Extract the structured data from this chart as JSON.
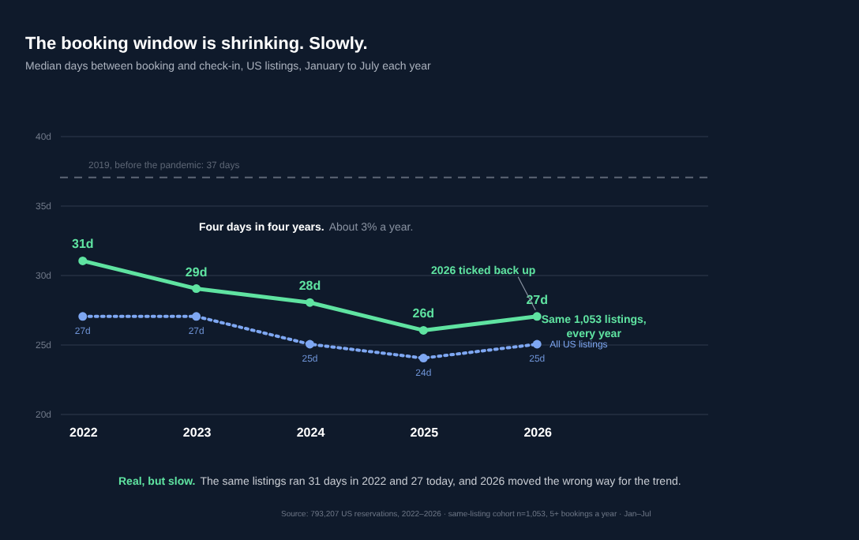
{
  "chart_data": {
    "type": "line",
    "title": "The booking window is shrinking. Slowly.",
    "subtitle": "Median days between booking and check-in, US listings, January to July each year",
    "x": [
      2022,
      2023,
      2024,
      2025,
      2026
    ],
    "xlim": [
      2021.8,
      2027.5
    ],
    "xticks": [
      2022,
      2023,
      2024,
      2025,
      2026
    ],
    "ylim": [
      20,
      40
    ],
    "yticks": [
      {
        "value": 20,
        "label": "20d"
      },
      {
        "value": 25,
        "label": "25d"
      },
      {
        "value": 30,
        "label": "30d"
      },
      {
        "value": 35,
        "label": "35d"
      },
      {
        "value": 40,
        "label": "40d"
      }
    ],
    "grid": "y",
    "marker": "circle",
    "series": [
      {
        "name": "Same 1,053 listings,\nevery year",
        "color": "#5fe3a1",
        "line_style": "solid",
        "values": [
          31,
          29,
          28,
          26,
          27
        ],
        "value_labels": [
          "31d",
          "29d",
          "28d",
          "26d",
          "27d"
        ]
      },
      {
        "name": "All US listings",
        "color": "#7ea7f2",
        "line_style": "dotted",
        "values": [
          27,
          27,
          25,
          24,
          25
        ],
        "value_labels": [
          "27d",
          "27d",
          "25d",
          "24d",
          "25d"
        ]
      }
    ],
    "ref_lines": [
      {
        "axis": "y",
        "value": 37,
        "label": "2019, before the pandemic: 37 days",
        "color": "#5d6675",
        "line_style": "dashed"
      }
    ],
    "annotations": [
      "Four days in four years.",
      "About 3% a year.",
      {
        "text": "2026 ticked back up",
        "x": 2026,
        "y": 27
      },
      "Real, but slow.",
      "The same listings ran 31 days in 2022 and 27 today, and 2026 moved the wrong way for the trend.",
      "Source: 793,207 US reservations, 2022–2026 · same-listing cohort n=1,053, 5+ bookings a year · Jan–Jul"
    ]
  }
}
